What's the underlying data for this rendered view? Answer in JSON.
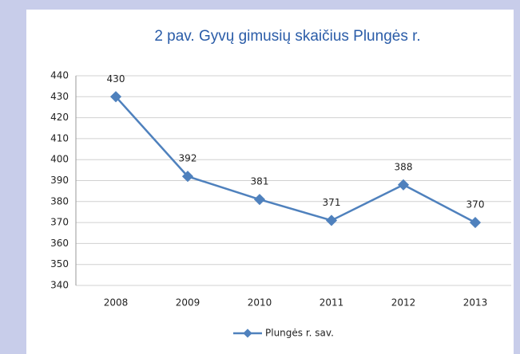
{
  "chart_data": {
    "type": "line",
    "title": "2 pav. Gyvų gimusių skaičius Plungės r.",
    "categories": [
      "2008",
      "2009",
      "2010",
      "2011",
      "2012",
      "2013"
    ],
    "series": [
      {
        "name": "Plungės r. sav.",
        "color": "#4f81bd",
        "values": [
          430,
          392,
          381,
          371,
          388,
          370
        ]
      }
    ],
    "ylim": [
      340,
      440
    ],
    "yticks": [
      340,
      350,
      360,
      370,
      380,
      390,
      400,
      410,
      420,
      430,
      440
    ],
    "grid": true,
    "legend": "bottom"
  }
}
